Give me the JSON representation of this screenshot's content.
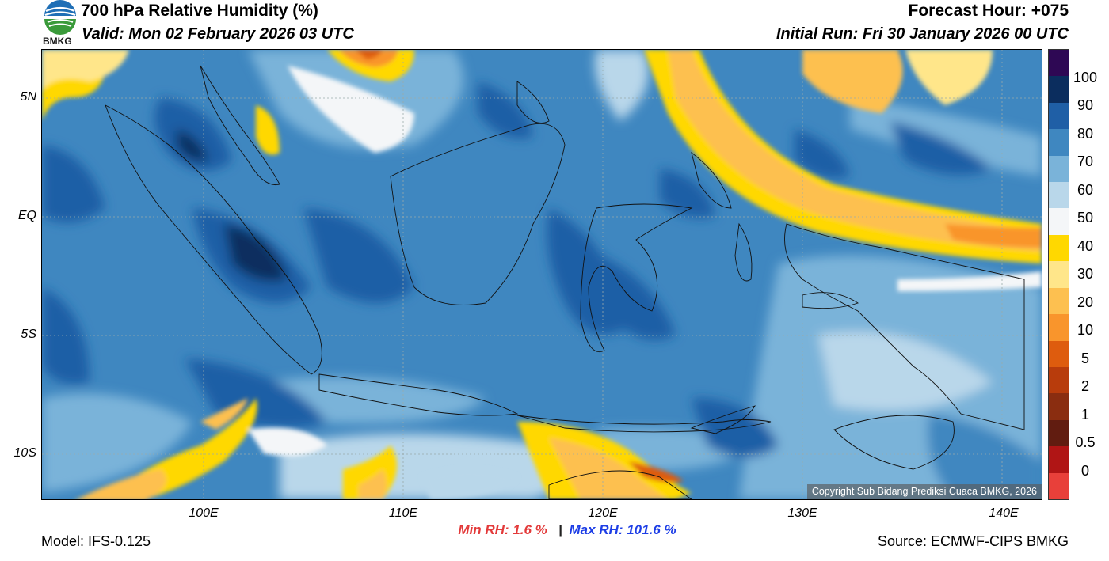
{
  "header": {
    "title": "700 hPa Relative Humidity (%)",
    "valid": "Valid: Mon 02 February 2026 03 UTC",
    "forecast_hour": "Forecast Hour: +075",
    "initial_run": "Initial Run: Fri 30 January 2026 00 UTC",
    "logo_text": "BMKG"
  },
  "axes": {
    "lat_labels": [
      "5N",
      "EQ",
      "5S",
      "10S"
    ],
    "lon_labels": [
      "100E",
      "110E",
      "120E",
      "130E",
      "140E"
    ]
  },
  "colorbar": {
    "labels": [
      "100",
      "90",
      "80",
      "70",
      "60",
      "50",
      "40",
      "30",
      "20",
      "10",
      "5",
      "2",
      "1",
      "0.5",
      "0"
    ],
    "colors": [
      "#2e0854",
      "#0b2d5e",
      "#1f5fa6",
      "#3f87c0",
      "#7ab3d9",
      "#b9d7ea",
      "#f4f6f8",
      "#ffd800",
      "#ffe68a",
      "#fdc050",
      "#f9952c",
      "#de5c0e",
      "#b83c0c",
      "#8a2d10",
      "#611c10",
      "#b01515",
      "#e8403a"
    ]
  },
  "stats": {
    "min_rh": "Min RH:   1.6 %",
    "separator": "|",
    "max_rh": "Max RH: 101.6 %"
  },
  "footer": {
    "model": "Model: IFS-0.125",
    "source": "Source: ECMWF-CIPS BMKG",
    "copyright": "Copyright Sub Bidang Prediksi Cuaca BMKG, 2026"
  }
}
